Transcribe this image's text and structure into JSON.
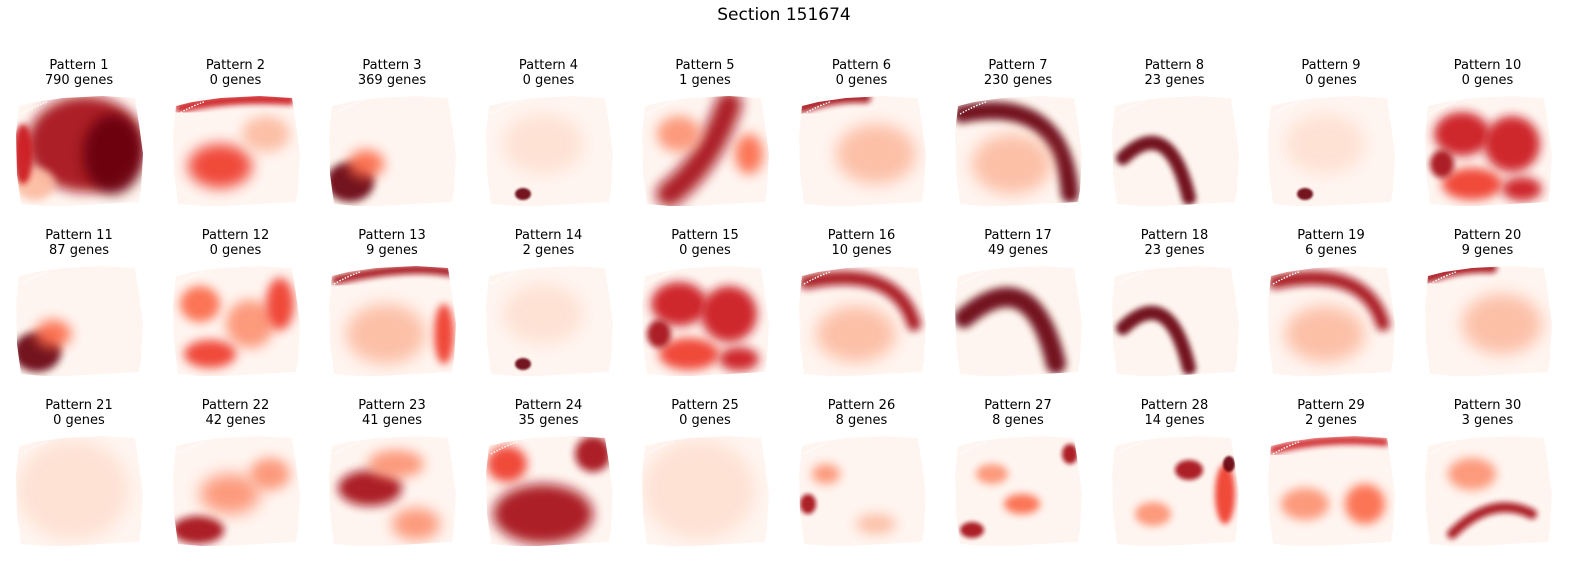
{
  "title": "Section 151674",
  "chart_data": {
    "type": "heatmap",
    "title": "Section 151674",
    "colormap": "Reds",
    "colors": {
      "low": "#fff5f0",
      "mid": "#fb6a4a",
      "high": "#67000d"
    },
    "layout": "3 rows x 10 columns",
    "panels": [
      {
        "name": "Pattern 1",
        "genes": "790 genes",
        "pattern": "broad-high-except-bottom-left"
      },
      {
        "name": "Pattern 2",
        "genes": "0 genes",
        "pattern": "top-band-and-lower-center"
      },
      {
        "name": "Pattern 3",
        "genes": "369 genes",
        "pattern": "bottom-left-corner"
      },
      {
        "name": "Pattern 4",
        "genes": "0 genes",
        "pattern": "near-uniform-low"
      },
      {
        "name": "Pattern 5",
        "genes": "1 genes",
        "pattern": "diagonal-center-band"
      },
      {
        "name": "Pattern 6",
        "genes": "0 genes",
        "pattern": "top-left-edge"
      },
      {
        "name": "Pattern 7",
        "genes": "230 genes",
        "pattern": "outer-arc-top-right"
      },
      {
        "name": "Pattern 8",
        "genes": "23 genes",
        "pattern": "inner-arc-left"
      },
      {
        "name": "Pattern 9",
        "genes": "0 genes",
        "pattern": "near-uniform-low"
      },
      {
        "name": "Pattern 10",
        "genes": "0 genes",
        "pattern": "patchy-high"
      },
      {
        "name": "Pattern 11",
        "genes": "87 genes",
        "pattern": "bottom-left-corner"
      },
      {
        "name": "Pattern 12",
        "genes": "0 genes",
        "pattern": "patchy-medium"
      },
      {
        "name": "Pattern 13",
        "genes": "9 genes",
        "pattern": "top-edge-and-right"
      },
      {
        "name": "Pattern 14",
        "genes": "2 genes",
        "pattern": "near-uniform-low"
      },
      {
        "name": "Pattern 15",
        "genes": "0 genes",
        "pattern": "patchy-high"
      },
      {
        "name": "Pattern 16",
        "genes": "10 genes",
        "pattern": "top-arc"
      },
      {
        "name": "Pattern 17",
        "genes": "49 genes",
        "pattern": "middle-arc"
      },
      {
        "name": "Pattern 18",
        "genes": "23 genes",
        "pattern": "inner-arc-left"
      },
      {
        "name": "Pattern 19",
        "genes": "6 genes",
        "pattern": "top-arc"
      },
      {
        "name": "Pattern 20",
        "genes": "9 genes",
        "pattern": "top-left-edge"
      },
      {
        "name": "Pattern 21",
        "genes": "0 genes",
        "pattern": "uniform-low"
      },
      {
        "name": "Pattern 22",
        "genes": "42 genes",
        "pattern": "bottom-left-blob"
      },
      {
        "name": "Pattern 23",
        "genes": "41 genes",
        "pattern": "center-left-blob"
      },
      {
        "name": "Pattern 24",
        "genes": "35 genes",
        "pattern": "broad-lower-and-top-right"
      },
      {
        "name": "Pattern 25",
        "genes": "0 genes",
        "pattern": "uniform-low"
      },
      {
        "name": "Pattern 26",
        "genes": "8 genes",
        "pattern": "left-spots"
      },
      {
        "name": "Pattern 27",
        "genes": "8 genes",
        "pattern": "scattered-spots"
      },
      {
        "name": "Pattern 28",
        "genes": "14 genes",
        "pattern": "right-spots"
      },
      {
        "name": "Pattern 29",
        "genes": "2 genes",
        "pattern": "top-edge-and-scattered"
      },
      {
        "name": "Pattern 30",
        "genes": "3 genes",
        "pattern": "center-streak"
      }
    ]
  }
}
